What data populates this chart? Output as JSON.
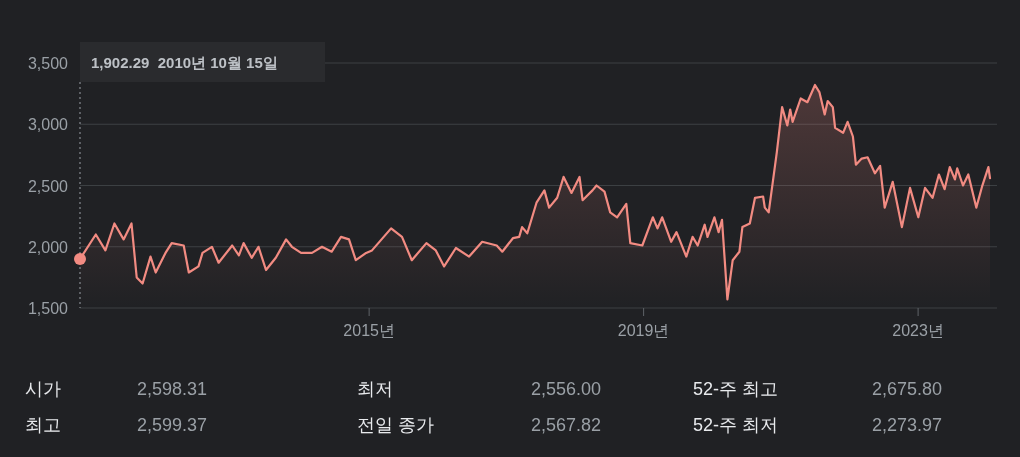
{
  "chart_data": {
    "type": "area",
    "xlim": [
      "2010-10-15",
      "2024-02-25"
    ],
    "ylim": [
      1500,
      3500
    ],
    "xticks": [
      {
        "value": "2015-01-01",
        "label": "2015년"
      },
      {
        "value": "2019-01-01",
        "label": "2019년"
      },
      {
        "value": "2023-01-01",
        "label": "2023년"
      }
    ],
    "yticks": [
      {
        "value": 1500,
        "label": "1,500"
      },
      {
        "value": 2000,
        "label": "2,000"
      },
      {
        "value": 2500,
        "label": "2,500"
      },
      {
        "value": 3000,
        "label": "3,000"
      },
      {
        "value": 3500,
        "label": "3,500"
      }
    ],
    "grid": "y",
    "x": [
      "2010-10-15",
      "2011-01-07",
      "2011-02-27",
      "2011-04-16",
      "2011-06-04",
      "2011-07-16",
      "2011-08-13",
      "2011-09-13",
      "2011-10-25",
      "2011-11-22",
      "2012-01-13",
      "2012-02-15",
      "2012-04-19",
      "2012-05-16",
      "2012-07-07",
      "2012-07-28",
      "2012-09-16",
      "2012-10-22",
      "2013-01-02",
      "2013-02-07",
      "2013-03-04",
      "2013-04-16",
      "2013-05-22",
      "2013-07-01",
      "2013-08-22",
      "2013-10-16",
      "2013-11-16",
      "2014-01-04",
      "2014-03-03",
      "2014-04-25",
      "2014-06-16",
      "2014-08-04",
      "2014-09-16",
      "2014-10-22",
      "2014-12-16",
      "2015-01-16",
      "2015-04-28",
      "2015-06-25",
      "2015-08-16",
      "2015-11-02",
      "2015-12-22",
      "2016-02-04",
      "2016-04-07",
      "2016-06-16",
      "2016-08-25",
      "2016-11-10",
      "2016-12-10",
      "2017-02-04",
      "2017-03-10",
      "2017-03-25",
      "2017-04-22",
      "2017-06-10",
      "2017-07-22",
      "2017-08-16",
      "2017-09-28",
      "2017-11-01",
      "2017-12-13",
      "2018-01-25",
      "2018-02-10",
      "2018-04-04",
      "2018-04-25",
      "2018-06-07",
      "2018-07-07",
      "2018-08-13",
      "2018-10-01",
      "2018-10-22",
      "2018-12-25",
      "2019-02-19",
      "2019-03-16",
      "2019-04-10",
      "2019-05-28",
      "2019-06-25",
      "2019-08-16",
      "2019-09-19",
      "2019-10-16",
      "2019-11-22",
      "2019-12-07",
      "2020-01-13",
      "2020-02-04",
      "2020-02-22",
      "2020-03-22",
      "2020-04-19",
      "2020-05-25",
      "2020-06-10",
      "2020-07-19",
      "2020-08-16",
      "2020-09-28",
      "2020-10-07",
      "2020-10-28",
      "2020-12-10",
      "2021-01-07",
      "2021-02-04",
      "2021-02-19",
      "2021-03-04",
      "2021-04-16",
      "2021-05-22",
      "2021-07-01",
      "2021-07-25",
      "2021-08-22",
      "2021-09-07",
      "2021-10-04",
      "2021-10-16",
      "2021-11-28",
      "2021-12-22",
      "2022-01-19",
      "2022-02-04",
      "2022-03-07",
      "2022-04-07",
      "2022-05-16",
      "2022-06-13",
      "2022-07-07",
      "2022-08-19",
      "2022-10-07",
      "2022-11-19",
      "2023-01-02",
      "2023-02-07",
      "2023-03-19",
      "2023-04-22",
      "2023-05-22",
      "2023-06-19",
      "2023-07-16",
      "2023-07-28",
      "2023-08-28",
      "2023-09-25",
      "2023-11-07",
      "2023-12-07",
      "2024-01-10",
      "2024-01-19"
    ],
    "series": [
      {
        "color": "#f28b82",
        "values": [
          1900,
          2100,
          1970,
          2190,
          2060,
          2190,
          1750,
          1700,
          1920,
          1790,
          1950,
          2030,
          2010,
          1790,
          1840,
          1950,
          2000,
          1870,
          2010,
          1930,
          2030,
          1910,
          2000,
          1810,
          1910,
          2060,
          2000,
          1950,
          1950,
          2000,
          1960,
          2080,
          2060,
          1890,
          1950,
          1970,
          2150,
          2080,
          1890,
          2030,
          1970,
          1840,
          1990,
          1920,
          2040,
          2010,
          1960,
          2070,
          2080,
          2160,
          2110,
          2360,
          2460,
          2320,
          2400,
          2570,
          2440,
          2570,
          2380,
          2460,
          2500,
          2450,
          2280,
          2240,
          2350,
          2030,
          2010,
          2240,
          2150,
          2240,
          2040,
          2120,
          1920,
          2080,
          2010,
          2180,
          2080,
          2240,
          2120,
          2220,
          1570,
          1890,
          1960,
          2160,
          2190,
          2400,
          2410,
          2320,
          2280,
          2770,
          3140,
          2990,
          3120,
          3020,
          3210,
          3180,
          3320,
          3260,
          3080,
          3190,
          3140,
          2970,
          2930,
          3020,
          2900,
          2670,
          2720,
          2730,
          2600,
          2660,
          2320,
          2530,
          2160,
          2480,
          2240,
          2480,
          2400,
          2590,
          2470,
          2650,
          2550,
          2640,
          2500,
          2590,
          2320,
          2490,
          2650,
          2560
        ]
      }
    ],
    "annotations": [
      "1,902.29  2010년 10월 15일",
      "시가",
      "2,598.31",
      "최저",
      "2,556.00",
      "52-주 최고",
      "2,675.80",
      "최고",
      "2,599.37",
      "전일 종가",
      "2,567.82",
      "52-주 최저",
      "2,273.97"
    ]
  }
}
